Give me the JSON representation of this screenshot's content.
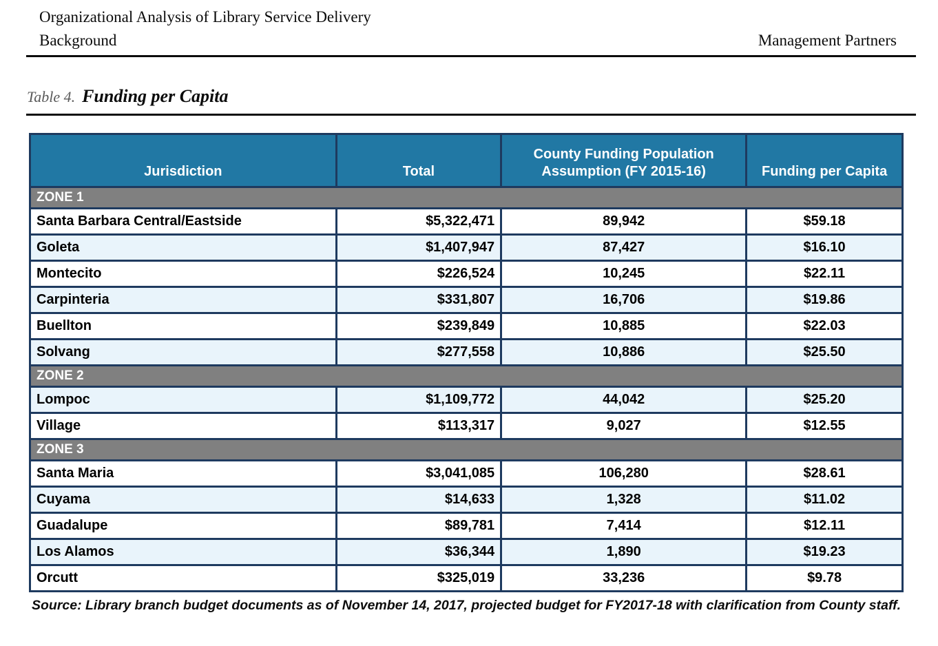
{
  "page_header": {
    "title": "Organizational Analysis of Library Service Delivery",
    "subtitle": "Background",
    "right": "Management Partners"
  },
  "caption": {
    "prefix": "Table 4.",
    "title": "Funding per Capita"
  },
  "table": {
    "columns": [
      "Jurisdiction",
      "Total",
      "County Funding Population Assumption (FY 2015-16)",
      "Funding per Capita"
    ],
    "groups": [
      {
        "zone": "ZONE 1",
        "rows": [
          {
            "jurisdiction": "Santa Barbara Central/Eastside",
            "total": "$5,322,471",
            "population": "89,942",
            "per_capita": "$59.18",
            "shaded": false
          },
          {
            "jurisdiction": "Goleta",
            "total": "$1,407,947",
            "population": "87,427",
            "per_capita": "$16.10",
            "shaded": true
          },
          {
            "jurisdiction": "Montecito",
            "total": "$226,524",
            "population": "10,245",
            "per_capita": "$22.11",
            "shaded": false
          },
          {
            "jurisdiction": "Carpinteria",
            "total": "$331,807",
            "population": "16,706",
            "per_capita": "$19.86",
            "shaded": true
          },
          {
            "jurisdiction": "Buellton",
            "total": "$239,849",
            "population": "10,885",
            "per_capita": "$22.03",
            "shaded": false
          },
          {
            "jurisdiction": "Solvang",
            "total": "$277,558",
            "population": "10,886",
            "per_capita": "$25.50",
            "shaded": true
          }
        ]
      },
      {
        "zone": "ZONE 2",
        "rows": [
          {
            "jurisdiction": "Lompoc",
            "total": "$1,109,772",
            "population": "44,042",
            "per_capita": "$25.20",
            "shaded": true
          },
          {
            "jurisdiction": "Village",
            "total": "$113,317",
            "population": "9,027",
            "per_capita": "$12.55",
            "shaded": false
          }
        ]
      },
      {
        "zone": "ZONE 3",
        "rows": [
          {
            "jurisdiction": "Santa Maria",
            "total": "$3,041,085",
            "population": "106,280",
            "per_capita": "$28.61",
            "shaded": false
          },
          {
            "jurisdiction": "Cuyama",
            "total": "$14,633",
            "population": "1,328",
            "per_capita": "$11.02",
            "shaded": true
          },
          {
            "jurisdiction": "Guadalupe",
            "total": "$89,781",
            "population": "7,414",
            "per_capita": "$12.11",
            "shaded": false
          },
          {
            "jurisdiction": "Los Alamos",
            "total": "$36,344",
            "population": "1,890",
            "per_capita": "$19.23",
            "shaded": true
          },
          {
            "jurisdiction": "Orcutt",
            "total": "$325,019",
            "population": "33,236",
            "per_capita": "$9.78",
            "shaded": false
          }
        ]
      }
    ]
  },
  "source": "Source: Library branch budget documents as of November 14, 2017, projected budget for FY2017-18 with clarification from County staff.",
  "colors": {
    "header_blue": "#2178a4",
    "zone_gray": "#808080",
    "row_shade_blue": "#e9f4fb",
    "border_navy": "#1e3a5f",
    "rule_black": "#0b0b0b"
  }
}
